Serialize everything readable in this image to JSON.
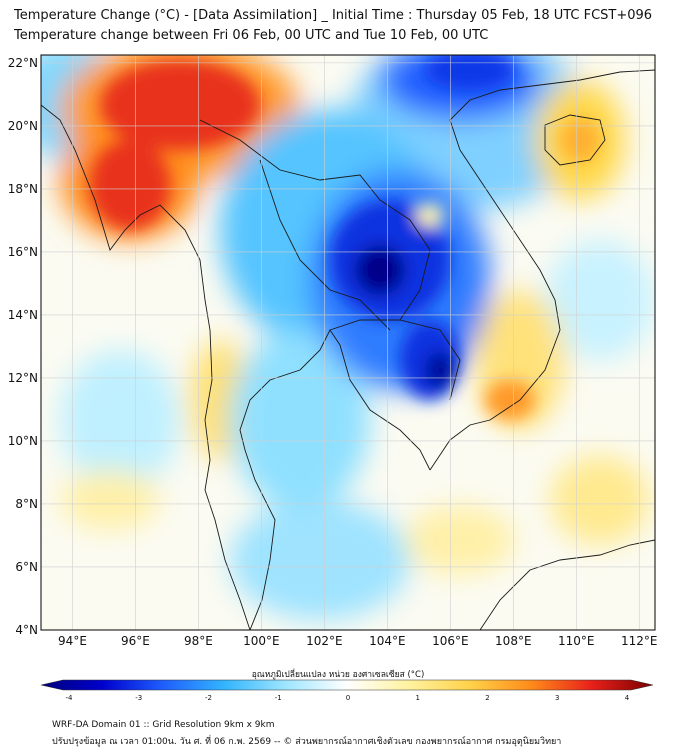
{
  "header": {
    "title_line1": "Temperature Change (°C) - [Data Assimilation] _ Initial Time : Thursday 05 Feb, 18 UTC FCST+096",
    "title_line2": "Temperature change between Fri 06 Feb, 00 UTC and Tue 10 Feb, 00 UTC"
  },
  "map": {
    "lat_labels": [
      "22°N",
      "20°N",
      "18°N",
      "16°N",
      "14°N",
      "12°N",
      "10°N",
      "8°N",
      "6°N",
      "4°N"
    ],
    "lat_values": [
      22,
      20,
      18,
      16,
      14,
      12,
      10,
      8,
      6,
      4
    ],
    "lon_labels": [
      "94°E",
      "96°E",
      "98°E",
      "100°E",
      "102°E",
      "104°E",
      "106°E",
      "108°E",
      "110°E",
      "112°E"
    ],
    "lon_values": [
      94,
      96,
      98,
      100,
      102,
      104,
      106,
      108,
      110,
      112
    ],
    "extent": {
      "lon_min": 93,
      "lon_max": 112.5,
      "lat_min": 4,
      "lat_max": 22.25
    }
  },
  "colorbar": {
    "title": "อุณหภูมิเปลี่ยนแปลง หน่วย องศาเซลเซียส (°C)",
    "tick_labels": [
      "-4",
      "-3",
      "-2",
      "-1",
      "0",
      "1",
      "2",
      "3",
      "4"
    ],
    "tick_values": [
      -4,
      -3,
      -2,
      -1,
      0,
      1,
      2,
      3,
      4
    ],
    "colors": [
      "#00007a",
      "#0000cd",
      "#1f5fff",
      "#33b5ff",
      "#9fe6ff",
      "#ffffff",
      "#fff2a0",
      "#ffd24a",
      "#ff8c1a",
      "#e8201a",
      "#7a0000"
    ]
  },
  "footer": {
    "line1": "WRF-DA Domain 01 :: Grid Resolution 9km x 9km",
    "line2": "ปรับปรุงข้อมูล ณ เวลา 01:00น. วัน ศ. ที่ 06 ก.พ. 2569 -- © ส่วนพยากรณ์อากาศเชิงตัวเลข กองพยากรณ์อากาศ กรมอุตุนิยมวิทยา"
  }
}
